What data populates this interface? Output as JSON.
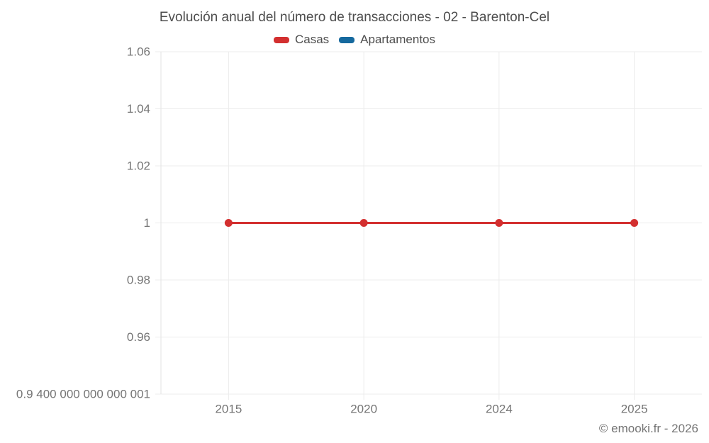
{
  "title": "Evolución anual del número de transacciones - 02 - Barenton-Cel",
  "legend": {
    "items": [
      {
        "id": "casas",
        "label": "Casas",
        "color": "#d32f2f"
      },
      {
        "id": "apartamentos",
        "label": "Apartamentos",
        "color": "#15699e"
      }
    ]
  },
  "footer": {
    "credit": "© emooki.fr - 2026"
  },
  "colors": {
    "casas": "#d32f2f",
    "apartamentos": "#15699e",
    "gridline": "#ececec",
    "axis_line": "#e3e3e3",
    "tick_text": "#757575",
    "title_text": "#4d4d4d"
  },
  "chart_data": {
    "type": "line",
    "title": "Evolución anual del número de transacciones - 02 - Barenton-Cel",
    "categories": [
      "2015",
      "2020",
      "2024",
      "2025"
    ],
    "series": [
      {
        "name": "Casas",
        "color": "#d32f2f",
        "values": [
          1,
          1,
          1,
          1
        ]
      },
      {
        "name": "Apartamentos",
        "color": "#15699e",
        "values": []
      }
    ],
    "xlabel": "",
    "ylabel": "",
    "ylim": [
      0.94,
      1.06
    ],
    "y_ticks": [
      {
        "value": 1.06,
        "label": "1.06"
      },
      {
        "value": 1.04,
        "label": "1.04"
      },
      {
        "value": 1.02,
        "label": "1.02"
      },
      {
        "value": 1.0,
        "label": "1"
      },
      {
        "value": 0.98,
        "label": "0.98"
      },
      {
        "value": 0.96,
        "label": "0.96"
      },
      {
        "value": 0.94,
        "label": "0.9 400 000 000 000 001"
      }
    ],
    "grid": true,
    "legend_position": "top"
  }
}
